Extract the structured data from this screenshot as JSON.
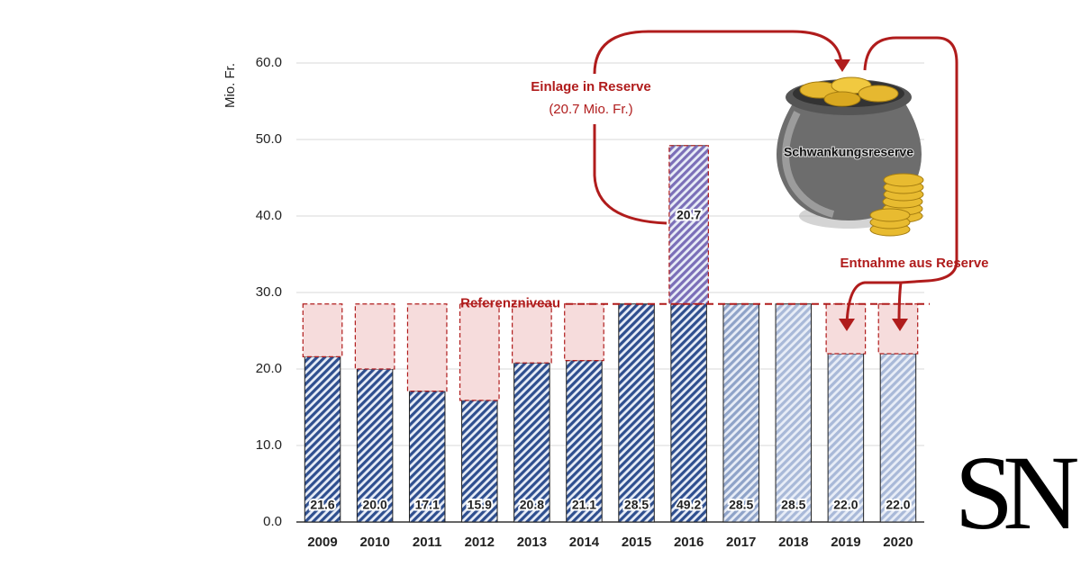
{
  "chart_data": {
    "type": "bar",
    "y_label": "Mio. Fr.",
    "categories": [
      "2009",
      "2010",
      "2011",
      "2012",
      "2013",
      "2014",
      "2015",
      "2016",
      "2017",
      "2018",
      "2019",
      "2020"
    ],
    "values": [
      21.6,
      20.0,
      17.1,
      15.9,
      20.8,
      21.1,
      28.5,
      49.2,
      28.5,
      28.5,
      22.0,
      22.0
    ],
    "value_labels": [
      "21.6",
      "20.0",
      "17.1",
      "15.9",
      "20.8",
      "21.1",
      "28.5",
      "49.2",
      "28.5",
      "28.5",
      "22.0",
      "22.0"
    ],
    "colors": [
      "#2f4f8f",
      "#2f4f8f",
      "#2f4f8f",
      "#2f4f8f",
      "#2f4f8f",
      "#2f4f8f",
      "#2f4f8f",
      "#2f4f8f",
      "#8fa3c8",
      "#a9b9d8",
      "#a9b9d8",
      "#a9b9d8"
    ],
    "reference_level": 28.5,
    "reserve_deposit": {
      "value": 20.7,
      "label": "20.7",
      "category_index": 7,
      "color": "#7b6fb8"
    },
    "withdrawal_color": "#f6dcdc",
    "annotation_color": "#b01c1c",
    "annotations": {
      "reference": "Referenzniveau",
      "deposit_title": "Einlage in Reserve",
      "deposit_amount": "(20.7 Mio. Fr.)",
      "reserve": "Schwankungsreserve",
      "withdrawal": "Entnahme aus Reserve"
    },
    "ylim": [
      0,
      60
    ],
    "yticks": [
      {
        "value": 0,
        "label": "0.0"
      },
      {
        "value": 10,
        "label": "10.0"
      },
      {
        "value": 20,
        "label": "20.0"
      },
      {
        "value": 30,
        "label": "30.0"
      },
      {
        "value": 40,
        "label": "40.0"
      },
      {
        "value": 50,
        "label": "50.0"
      },
      {
        "value": 60,
        "label": "60.0"
      }
    ],
    "grid": true
  },
  "logo": "SN"
}
